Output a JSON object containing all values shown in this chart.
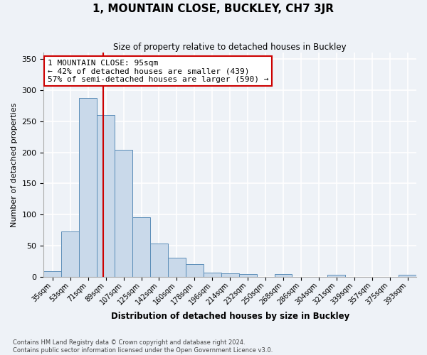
{
  "title": "1, MOUNTAIN CLOSE, BUCKLEY, CH7 3JR",
  "subtitle": "Size of property relative to detached houses in Buckley",
  "xlabel": "Distribution of detached houses by size in Buckley",
  "ylabel": "Number of detached properties",
  "categories": [
    "35sqm",
    "53sqm",
    "71sqm",
    "89sqm",
    "107sqm",
    "125sqm",
    "142sqm",
    "160sqm",
    "178sqm",
    "196sqm",
    "214sqm",
    "232sqm",
    "250sqm",
    "268sqm",
    "286sqm",
    "304sqm",
    "321sqm",
    "339sqm",
    "357sqm",
    "375sqm",
    "393sqm"
  ],
  "values": [
    9,
    73,
    287,
    260,
    204,
    96,
    54,
    31,
    21,
    7,
    6,
    5,
    0,
    4,
    0,
    0,
    3,
    0,
    0,
    0,
    3
  ],
  "bar_color": "#c9d9ea",
  "bar_edge_color": "#5b8db8",
  "annotation_title": "1 MOUNTAIN CLOSE: 95sqm",
  "annotation_line1": "← 42% of detached houses are smaller (439)",
  "annotation_line2": "57% of semi-detached houses are larger (590) →",
  "annotation_box_color": "#ffffff",
  "annotation_box_edge": "#cc0000",
  "vline_color": "#cc0000",
  "ylim": [
    0,
    360
  ],
  "yticks": [
    0,
    50,
    100,
    150,
    200,
    250,
    300,
    350
  ],
  "footer_line1": "Contains HM Land Registry data © Crown copyright and database right 2024.",
  "footer_line2": "Contains public sector information licensed under the Open Government Licence v3.0.",
  "background_color": "#eef2f7",
  "plot_background_color": "#eef2f7",
  "grid_color": "#ffffff",
  "vline_x_index": 3.33
}
